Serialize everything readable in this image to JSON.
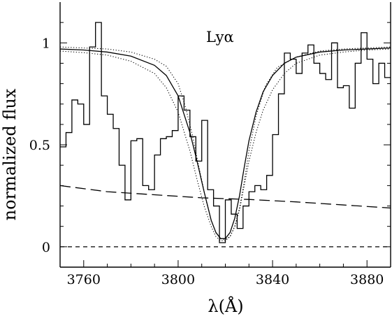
{
  "chart_data": {
    "type": "line",
    "title": "",
    "xlabel": "λ(Å)",
    "ylabel": "normalized flux",
    "annotation": "Lyα",
    "xlim": [
      3750,
      3890
    ],
    "ylim": [
      -0.1,
      1.2
    ],
    "x_ticks": [
      3760,
      3800,
      3840,
      3880
    ],
    "y_ticks": [
      0,
      0.5,
      1
    ],
    "x_tick_labels": [
      "3760",
      "3800",
      "3840",
      "3880"
    ],
    "y_tick_labels": [
      "0",
      "0.5",
      "1"
    ],
    "legend": "none",
    "grid": false,
    "series": [
      {
        "style": "step",
        "x": [
          3750,
          3752.5,
          3755,
          3757.5,
          3760,
          3762.5,
          3765,
          3767.5,
          3770,
          3772.5,
          3775,
          3777.5,
          3780,
          3782.5,
          3785,
          3787.5,
          3790,
          3792.5,
          3795,
          3797.5,
          3800,
          3802.5,
          3805,
          3807.5,
          3810,
          3812.5,
          3815,
          3817.5,
          3820,
          3822.5,
          3825,
          3827.5,
          3830,
          3832.5,
          3835,
          3837.5,
          3840,
          3842.5,
          3845,
          3847.5,
          3850,
          3852.5,
          3855,
          3857.5,
          3860,
          3862.5,
          3865,
          3867.5,
          3870,
          3872.5,
          3875,
          3877.5,
          3880,
          3882.5,
          3885,
          3887.5,
          3890
        ],
        "values": [
          0.49,
          0.56,
          0.72,
          0.7,
          0.6,
          0.98,
          1.1,
          0.74,
          0.65,
          0.58,
          0.4,
          0.23,
          0.52,
          0.53,
          0.3,
          0.28,
          0.45,
          0.53,
          0.54,
          0.57,
          0.74,
          0.67,
          0.54,
          0.42,
          0.62,
          0.28,
          0.2,
          0.02,
          0.23,
          0.16,
          0.09,
          0.2,
          0.27,
          0.3,
          0.28,
          0.35,
          0.55,
          0.75,
          0.95,
          0.92,
          0.85,
          0.95,
          0.99,
          0.9,
          0.85,
          0.82,
          1.0,
          0.78,
          0.79,
          0.68,
          0.9,
          1.05,
          0.92,
          0.8,
          0.9,
          0.83,
          0.9
        ]
      },
      {
        "style": "solid",
        "x": [
          3750,
          3760,
          3770,
          3780,
          3790,
          3795,
          3800,
          3805,
          3808,
          3811,
          3814,
          3816,
          3818,
          3820,
          3822,
          3824,
          3826,
          3828,
          3830,
          3833,
          3836,
          3840,
          3845,
          3850,
          3860,
          3870,
          3880,
          3890
        ],
        "values": [
          0.97,
          0.965,
          0.955,
          0.935,
          0.89,
          0.84,
          0.74,
          0.56,
          0.42,
          0.27,
          0.13,
          0.07,
          0.04,
          0.04,
          0.07,
          0.14,
          0.25,
          0.39,
          0.52,
          0.66,
          0.76,
          0.84,
          0.9,
          0.93,
          0.955,
          0.965,
          0.97,
          0.975
        ]
      },
      {
        "style": "dotted",
        "x": [
          3750,
          3760,
          3770,
          3780,
          3790,
          3795,
          3800,
          3803,
          3806,
          3809,
          3812,
          3814,
          3816,
          3818,
          3820,
          3822,
          3824,
          3826,
          3828,
          3830,
          3833,
          3837,
          3842,
          3850,
          3860,
          3870,
          3880,
          3890
        ],
        "values": [
          0.98,
          0.975,
          0.97,
          0.955,
          0.92,
          0.885,
          0.8,
          0.69,
          0.55,
          0.38,
          0.22,
          0.13,
          0.07,
          0.04,
          0.035,
          0.05,
          0.1,
          0.19,
          0.32,
          0.47,
          0.64,
          0.79,
          0.88,
          0.93,
          0.96,
          0.97,
          0.975,
          0.98
        ]
      },
      {
        "style": "dotted",
        "x": [
          3750,
          3760,
          3770,
          3780,
          3790,
          3795,
          3800,
          3805,
          3808,
          3811,
          3814,
          3816,
          3818,
          3820,
          3822,
          3824,
          3826,
          3828,
          3830,
          3833,
          3836,
          3840,
          3845,
          3850,
          3860,
          3870,
          3880,
          3890
        ],
        "values": [
          0.96,
          0.952,
          0.94,
          0.91,
          0.85,
          0.78,
          0.66,
          0.47,
          0.33,
          0.2,
          0.1,
          0.05,
          0.03,
          0.03,
          0.05,
          0.1,
          0.18,
          0.3,
          0.42,
          0.56,
          0.67,
          0.77,
          0.85,
          0.9,
          0.94,
          0.955,
          0.965,
          0.97
        ]
      },
      {
        "style": "long-dashed",
        "x": [
          3750,
          3770,
          3790,
          3810,
          3830,
          3850,
          3870,
          3890
        ],
        "values": [
          0.3,
          0.27,
          0.255,
          0.24,
          0.232,
          0.22,
          0.205,
          0.19
        ]
      },
      {
        "style": "short-dashed",
        "x": [
          3750,
          3890
        ],
        "values": [
          0,
          0
        ]
      }
    ]
  }
}
